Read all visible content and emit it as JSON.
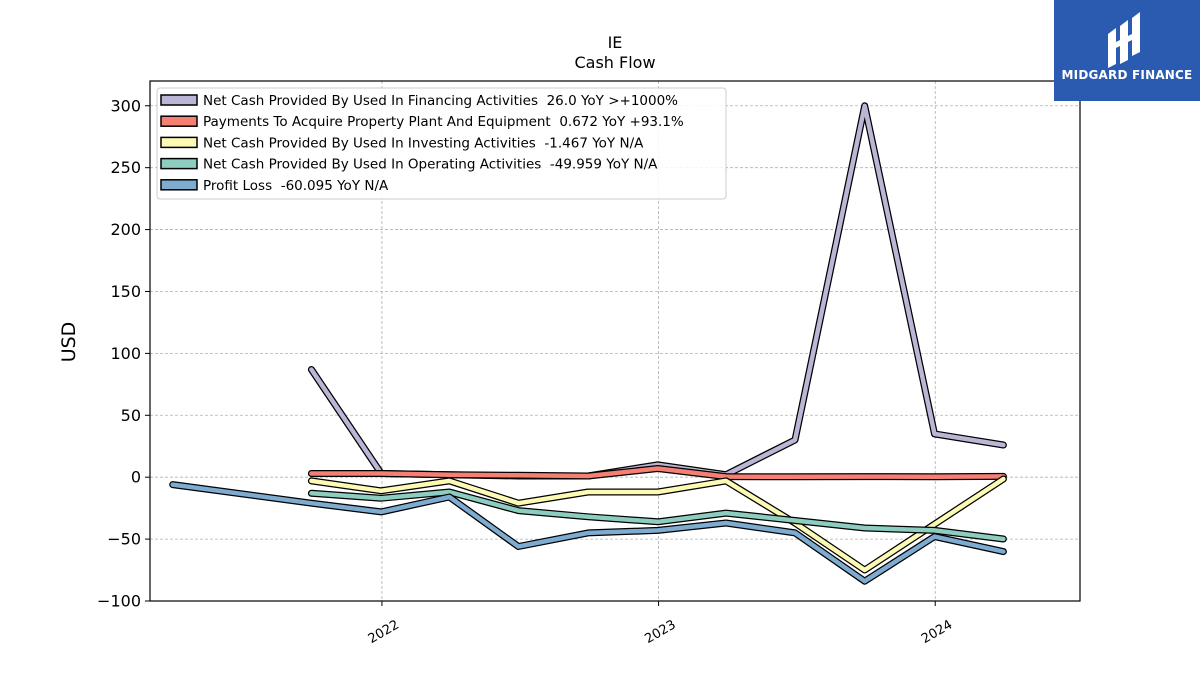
{
  "chart_data": {
    "type": "line",
    "title": "IE",
    "subtitle": "Cash Flow",
    "xlabel": "",
    "ylabel": "USD",
    "ylim": [
      -100,
      320
    ],
    "xlim": [
      "2021-03-01",
      "2024-07-10"
    ],
    "yticks": [
      -100,
      -50,
      0,
      50,
      100,
      150,
      200,
      250,
      300
    ],
    "xticks": [
      {
        "date": "2022-01-01",
        "label": "2022"
      },
      {
        "date": "2023-01-01",
        "label": "2023"
      },
      {
        "date": "2024-01-01",
        "label": "2024"
      }
    ],
    "grid": true,
    "legend_position": "top-left",
    "series": [
      {
        "name": "Net Cash Provided By Used In Financing Activities",
        "legend_suffix": "26.0 YoY >+1000%",
        "color": "#bcb6d6",
        "x": [
          "2021-09-30",
          "2021-12-31",
          "2022-06-30",
          "2022-09-30",
          "2022-12-31",
          "2023-03-31",
          "2023-06-30",
          "2023-09-30",
          "2023-12-31",
          "2024-03-31"
        ],
        "values": [
          87,
          3,
          1,
          1,
          10,
          2,
          30,
          300,
          35,
          26
        ]
      },
      {
        "name": "Payments To Acquire Property Plant And Equipment",
        "legend_suffix": "0.672 YoY +93.1%",
        "color": "#f47f72",
        "x": [
          "2021-09-30",
          "2021-12-31",
          "2022-03-31",
          "2022-06-30",
          "2022-09-30",
          "2022-12-31",
          "2023-03-31",
          "2023-06-30",
          "2023-09-30",
          "2023-12-31",
          "2024-03-31"
        ],
        "values": [
          3,
          3,
          2,
          1.5,
          1,
          7,
          0.5,
          0.3,
          0.5,
          0.4,
          0.672
        ]
      },
      {
        "name": "Net Cash Provided By Used In Investing Activities",
        "legend_suffix": "-1.467 YoY N/A",
        "color": "#fcfab3",
        "x": [
          "2021-09-30",
          "2021-12-31",
          "2022-03-31",
          "2022-06-30",
          "2022-09-30",
          "2022-12-31",
          "2023-03-31",
          "2023-06-30",
          "2023-09-30",
          "2023-12-31",
          "2024-03-31"
        ],
        "values": [
          -3,
          -11,
          -3,
          -21,
          -12,
          -12,
          -3,
          -37,
          -75,
          -38,
          -1.467
        ]
      },
      {
        "name": "Net Cash Provided By Used In Operating Activities",
        "legend_suffix": "-49.959 YoY N/A",
        "color": "#8ccdc0",
        "x": [
          "2021-09-30",
          "2021-12-31",
          "2022-03-31",
          "2022-06-30",
          "2022-09-30",
          "2022-12-31",
          "2023-03-31",
          "2023-06-30",
          "2023-09-30",
          "2023-12-31",
          "2024-03-31"
        ],
        "values": [
          -13,
          -17,
          -12,
          -27,
          -32,
          -36,
          -29,
          -35,
          -41,
          -43,
          -49.959
        ]
      },
      {
        "name": "Profit Loss",
        "legend_suffix": "-60.095 YoY N/A",
        "color": "#7eabd0",
        "x": [
          "2021-03-31",
          "2021-09-30",
          "2021-12-31",
          "2022-03-31",
          "2022-06-30",
          "2022-09-30",
          "2022-12-31",
          "2023-03-31",
          "2023-06-30",
          "2023-09-30",
          "2023-12-31",
          "2024-03-31"
        ],
        "values": [
          -6,
          -21,
          -28,
          -16,
          -56,
          -45,
          -43,
          -37,
          -45,
          -84,
          -48,
          -60.095
        ]
      }
    ]
  },
  "logo": {
    "text": "MIDGARD FINANCE",
    "background": "#2b5bb0"
  }
}
